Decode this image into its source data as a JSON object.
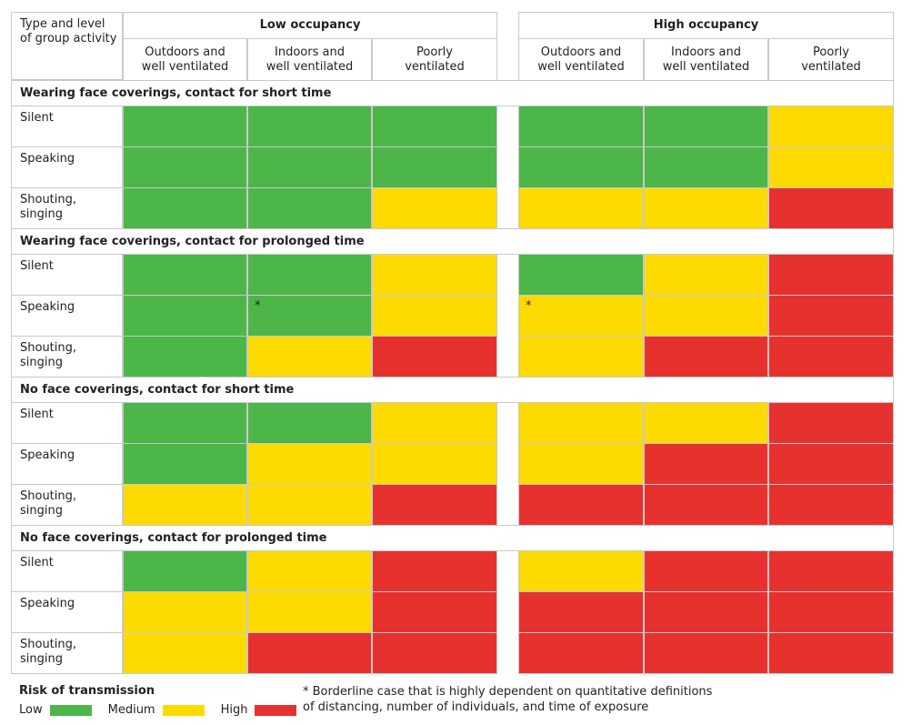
{
  "header": {
    "row_label": [
      "Type and level",
      "of group activity"
    ],
    "groups": [
      {
        "title": "Low occupancy",
        "columns": [
          [
            "Outdoors and",
            "well ventilated"
          ],
          [
            "Indoors and",
            "well ventilated"
          ],
          [
            "Poorly",
            "ventilated"
          ]
        ]
      },
      {
        "title": "High occupancy",
        "columns": [
          [
            "Outdoors and",
            "well ventilated"
          ],
          [
            "Indoors and",
            "well ventilated"
          ],
          [
            "Poorly",
            "ventilated"
          ]
        ]
      }
    ]
  },
  "sections": [
    {
      "title": "Wearing face coverings, contact for short time",
      "rows": [
        {
          "label": [
            "Silent"
          ],
          "cells": [
            {
              "risk": 0
            },
            {
              "risk": 0
            },
            {
              "risk": 0
            },
            {
              "risk": 0
            },
            {
              "risk": 0
            },
            {
              "risk": 1
            }
          ]
        },
        {
          "label": [
            "Speaking"
          ],
          "cells": [
            {
              "risk": 0
            },
            {
              "risk": 0
            },
            {
              "risk": 0
            },
            {
              "risk": 0
            },
            {
              "risk": 0
            },
            {
              "risk": 1
            }
          ]
        },
        {
          "label": [
            "Shouting,",
            "singing"
          ],
          "cells": [
            {
              "risk": 0
            },
            {
              "risk": 0
            },
            {
              "risk": 1
            },
            {
              "risk": 1
            },
            {
              "risk": 1
            },
            {
              "risk": 2
            }
          ]
        }
      ]
    },
    {
      "title": "Wearing face coverings, contact for prolonged time",
      "rows": [
        {
          "label": [
            "Silent"
          ],
          "cells": [
            {
              "risk": 0
            },
            {
              "risk": 0
            },
            {
              "risk": 1
            },
            {
              "risk": 0
            },
            {
              "risk": 1
            },
            {
              "risk": 2
            }
          ]
        },
        {
          "label": [
            "Speaking"
          ],
          "cells": [
            {
              "risk": 0
            },
            {
              "risk": 0,
              "note": "*"
            },
            {
              "risk": 1
            },
            {
              "risk": 1,
              "note": "*"
            },
            {
              "risk": 1
            },
            {
              "risk": 2
            }
          ]
        },
        {
          "label": [
            "Shouting,",
            "singing"
          ],
          "cells": [
            {
              "risk": 0
            },
            {
              "risk": 1
            },
            {
              "risk": 2
            },
            {
              "risk": 1
            },
            {
              "risk": 2
            },
            {
              "risk": 2
            }
          ]
        }
      ]
    },
    {
      "title": "No face coverings, contact for short time",
      "rows": [
        {
          "label": [
            "Silent"
          ],
          "cells": [
            {
              "risk": 0
            },
            {
              "risk": 0
            },
            {
              "risk": 1
            },
            {
              "risk": 1
            },
            {
              "risk": 1
            },
            {
              "risk": 2
            }
          ]
        },
        {
          "label": [
            "Speaking"
          ],
          "cells": [
            {
              "risk": 0
            },
            {
              "risk": 1
            },
            {
              "risk": 1
            },
            {
              "risk": 1
            },
            {
              "risk": 2
            },
            {
              "risk": 2
            }
          ]
        },
        {
          "label": [
            "Shouting,",
            "singing"
          ],
          "cells": [
            {
              "risk": 1
            },
            {
              "risk": 1
            },
            {
              "risk": 2
            },
            {
              "risk": 2
            },
            {
              "risk": 2
            },
            {
              "risk": 2
            }
          ]
        }
      ]
    },
    {
      "title": "No face coverings, contact for prolonged time",
      "rows": [
        {
          "label": [
            "Silent"
          ],
          "cells": [
            {
              "risk": 0
            },
            {
              "risk": 1
            },
            {
              "risk": 2
            },
            {
              "risk": 1
            },
            {
              "risk": 2
            },
            {
              "risk": 2
            }
          ]
        },
        {
          "label": [
            "Speaking"
          ],
          "cells": [
            {
              "risk": 1
            },
            {
              "risk": 1
            },
            {
              "risk": 2
            },
            {
              "risk": 2
            },
            {
              "risk": 2
            },
            {
              "risk": 2
            }
          ]
        },
        {
          "label": [
            "Shouting,",
            "singing"
          ],
          "cells": [
            {
              "risk": 1
            },
            {
              "risk": 2
            },
            {
              "risk": 2
            },
            {
              "risk": 2
            },
            {
              "risk": 2
            },
            {
              "risk": 2
            }
          ]
        }
      ]
    }
  ],
  "legend": {
    "title": "Risk of transmission",
    "items": [
      {
        "label": "Low",
        "color": "#4cb648"
      },
      {
        "label": "Medium",
        "color": "#fedb00"
      },
      {
        "label": "High",
        "color": "#e7312f"
      }
    ]
  },
  "footnote": [
    "* Borderline case that is highly dependent on quantitative definitions",
    "of distancing, number of individuals, and time of exposure"
  ]
}
